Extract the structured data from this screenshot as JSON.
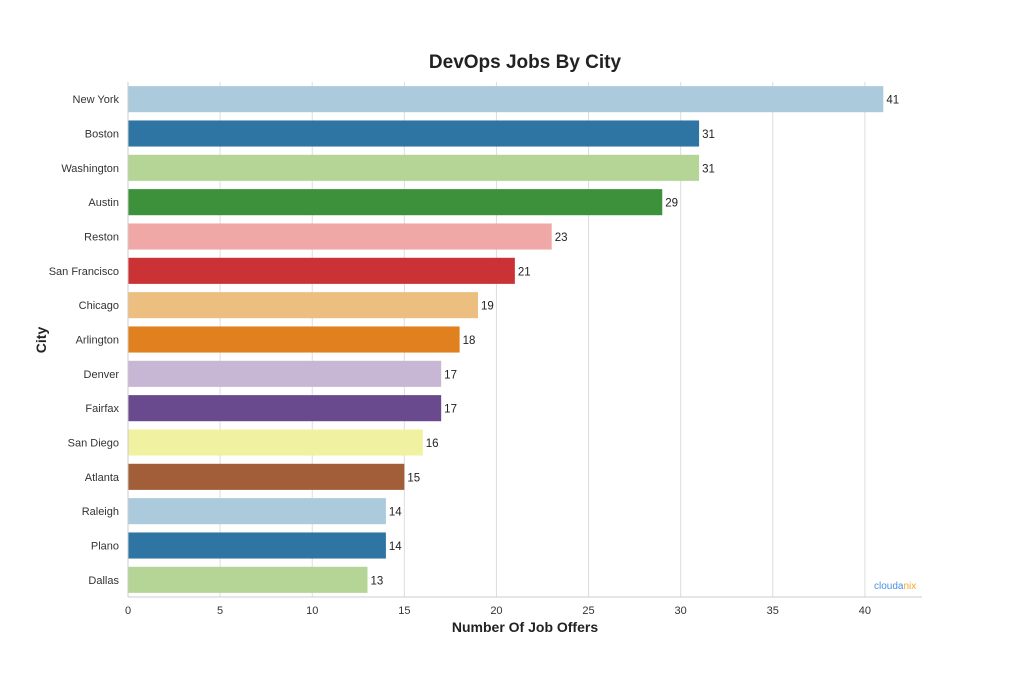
{
  "chart_data": {
    "type": "bar",
    "orientation": "horizontal",
    "title": "DevOps Jobs By City",
    "xlabel": "Number Of Job Offers",
    "ylabel": "City",
    "categories": [
      "New York",
      "Boston",
      "Washington",
      "Austin",
      "Reston",
      "San Francisco",
      "Chicago",
      "Arlington",
      "Denver",
      "Fairfax",
      "San Diego",
      "Atlanta",
      "Raleigh",
      "Plano",
      "Dallas"
    ],
    "values": [
      41,
      31,
      31,
      29,
      23,
      21,
      19,
      18,
      17,
      17,
      16,
      15,
      14,
      14,
      13
    ],
    "colors": [
      "#abcbdc",
      "#2f75a3",
      "#b4d595",
      "#3d913b",
      "#f0a8a7",
      "#cb3235",
      "#ecbf80",
      "#e0801f",
      "#c8b6d5",
      "#6a4a8e",
      "#f0f1a1",
      "#a15e38",
      "#abcbdc",
      "#2f75a3",
      "#b4d595"
    ],
    "xticks": [
      0,
      5,
      10,
      15,
      20,
      25,
      30,
      35,
      40
    ],
    "xlim": [
      0,
      43.1
    ],
    "grid": "vertical",
    "data_labels": true
  },
  "watermark": {
    "part1": "clouda",
    "part2": "nix",
    "color1": "#4a90e2",
    "color2": "#f5a623"
  }
}
